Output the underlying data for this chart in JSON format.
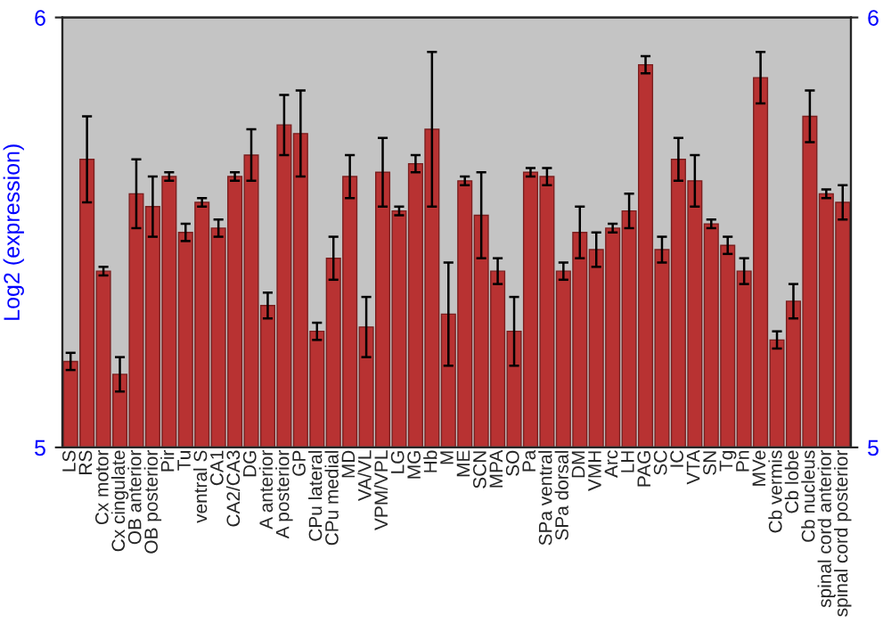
{
  "chart_data": {
    "type": "bar",
    "ylabel": "Log2 (expression)",
    "categories": [
      "LS",
      "RS",
      "Cx motor",
      "Cx cingulate",
      "OB anterior",
      "OB posterior",
      "Pir",
      "Tu",
      "ventral S",
      "CA1",
      "CA2/CA3",
      "DG",
      "A anterior",
      "A posterior",
      "GP",
      "CPu lateral",
      "CPu medial",
      "MD",
      "VA/VL",
      "VPM/VPL",
      "LG",
      "MG",
      "Hb",
      "M",
      "ME",
      "SCN",
      "MPA",
      "SO",
      "Pa",
      "SPa ventral",
      "SPa dorsal",
      "DM",
      "VMH",
      "Arc",
      "LH",
      "PAG",
      "SC",
      "IC",
      "VTA",
      "SN",
      "Tg",
      "Pn",
      "MVe",
      "Cb vermis",
      "Cb lobe",
      "Cb nucleus",
      "spinal cord anterior",
      "spinal cord posterior"
    ],
    "series": [
      {
        "color": "#b83232",
        "values": [
          5.2,
          5.67,
          5.41,
          5.17,
          5.59,
          5.56,
          5.63,
          5.5,
          5.57,
          5.51,
          5.63,
          5.68,
          5.33,
          5.75,
          5.73,
          5.27,
          5.44,
          5.63,
          5.28,
          5.64,
          5.55,
          5.66,
          5.74,
          5.31,
          5.62,
          5.54,
          5.41,
          5.27,
          5.64,
          5.63,
          5.41,
          5.5,
          5.46,
          5.51,
          5.55,
          5.89,
          5.46,
          5.67,
          5.62,
          5.52,
          5.47,
          5.41,
          5.86,
          5.25,
          5.34,
          5.77,
          5.59,
          5.57
        ],
        "errors": [
          0.02,
          0.1,
          0.01,
          0.04,
          0.08,
          0.07,
          0.01,
          0.02,
          0.01,
          0.02,
          0.01,
          0.06,
          0.03,
          0.07,
          0.1,
          0.02,
          0.05,
          0.05,
          0.07,
          0.08,
          0.01,
          0.02,
          0.18,
          0.12,
          0.01,
          0.1,
          0.03,
          0.08,
          0.01,
          0.02,
          0.02,
          0.06,
          0.04,
          0.01,
          0.04,
          0.02,
          0.03,
          0.05,
          0.06,
          0.01,
          0.02,
          0.03,
          0.06,
          0.02,
          0.04,
          0.06,
          0.01,
          0.04
        ]
      }
    ],
    "ylim": [
      5,
      6
    ],
    "yticks": [
      5,
      6
    ],
    "y2lim": [
      5,
      6
    ],
    "y2ticks": [
      5,
      6
    ]
  }
}
